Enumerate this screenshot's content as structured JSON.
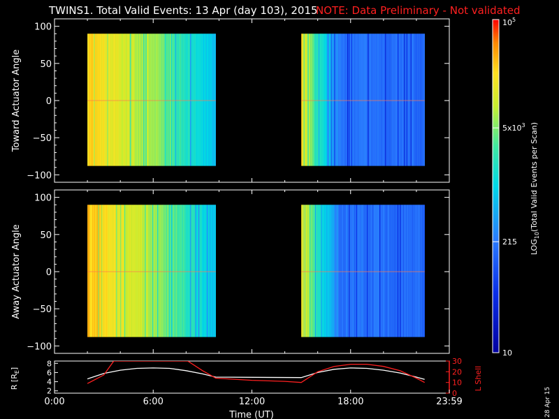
{
  "header": {
    "title": "TWINS1. Total Valid Events: 13 Apr (day 103), 2015",
    "note": "NOTE: Data Preliminary - Not validated"
  },
  "colors": {
    "note": "#ff2020",
    "orbit_line": "#ffffff",
    "lshell_line": "#ff2020"
  },
  "chart_data": [
    {
      "type": "heatmap",
      "panel": "top",
      "ylabel": "Toward Actuator Angle",
      "ylim": [
        -110,
        110
      ],
      "yticks": [
        "100",
        "50",
        "0",
        "−50",
        "−100"
      ],
      "xlim_hours": [
        0,
        24
      ],
      "coverage_hours": [
        [
          2.0,
          9.8
        ],
        [
          15.0,
          22.5
        ]
      ],
      "angle_range": [
        -88,
        90
      ],
      "grid": false
    },
    {
      "type": "heatmap",
      "panel": "middle",
      "ylabel": "Away Actuator Angle",
      "ylim": [
        -110,
        110
      ],
      "yticks": [
        "100",
        "50",
        "0",
        "−50",
        "−100"
      ],
      "xlim_hours": [
        0,
        24
      ],
      "coverage_hours": [
        [
          2.0,
          9.8
        ],
        [
          15.0,
          22.5
        ]
      ],
      "angle_range": [
        -88,
        90
      ],
      "grid": false
    },
    {
      "type": "line",
      "panel": "bottom",
      "ylabel_left": "R [R",
      "ylabel_left_sub": "E",
      "ylabel_left_end": "]",
      "ylabel_right": "L Shell",
      "yticks_left": [
        "8",
        "6",
        "4",
        "2"
      ],
      "ylim_left": [
        1.5,
        8.5
      ],
      "yticks_right": [
        "30",
        "20",
        "10",
        "0"
      ],
      "ylim_right": [
        0,
        30
      ],
      "xticks": [
        "0:00",
        "6:00",
        "12:00",
        "18:00",
        "23:59"
      ],
      "xlabel": "Time (UT)",
      "series": [
        {
          "name": "R",
          "axis": "left",
          "x": [
            2.0,
            3.0,
            4.0,
            5.0,
            6.0,
            7.0,
            8.0,
            9.0,
            9.8,
            15.0,
            16.0,
            17.0,
            18.0,
            19.0,
            20.0,
            21.0,
            22.0,
            22.5
          ],
          "y": [
            4.6,
            5.8,
            6.5,
            6.9,
            7.0,
            6.9,
            6.4,
            5.7,
            5.0,
            4.9,
            6.0,
            6.7,
            7.0,
            6.9,
            6.5,
            5.9,
            5.0,
            4.5
          ]
        },
        {
          "name": "L Shell",
          "axis": "right",
          "x": [
            2.0,
            3.0,
            3.6,
            8.1,
            9.0,
            9.8,
            12.0,
            14.0,
            15.0,
            16.0,
            17.0,
            18.0,
            19.0,
            20.0,
            21.0,
            22.0,
            22.5
          ],
          "y": [
            9,
            17,
            30,
            30,
            21,
            14,
            12,
            11,
            10,
            20,
            25,
            27,
            27,
            25,
            21,
            14,
            10
          ]
        }
      ]
    }
  ],
  "colorbar": {
    "label_pre": "LOG",
    "label_sub": "10",
    "label_post": "(Total Valid Events per Scan)",
    "ticks": [
      {
        "value": 10,
        "text": "10"
      },
      {
        "value": 215,
        "text": "215"
      },
      {
        "value": 5000,
        "base": "5x10",
        "exp": "3"
      },
      {
        "value": 100000,
        "base": "10",
        "exp": "5"
      }
    ],
    "range": [
      10,
      100000
    ]
  },
  "footer_date": "28 Apr 15"
}
